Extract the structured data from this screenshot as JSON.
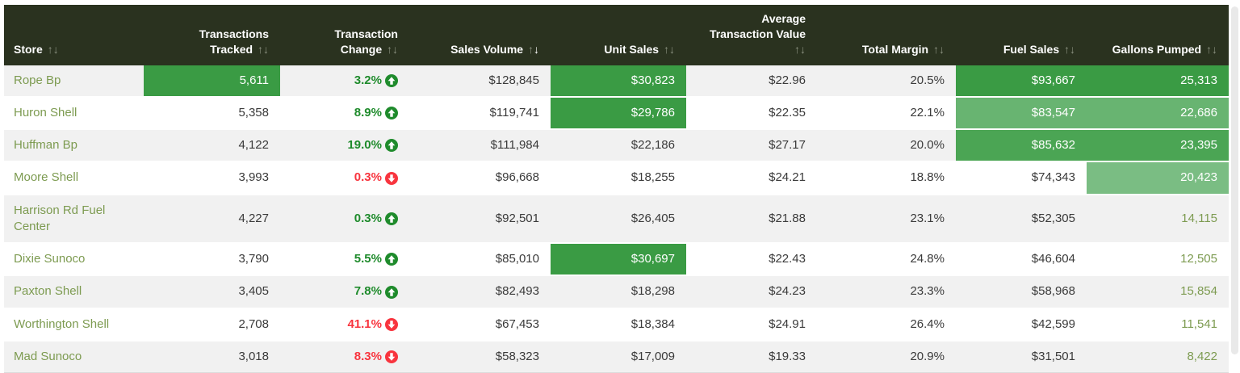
{
  "palette": {
    "header_bg": "#2a321f",
    "header_text": "#ffffff",
    "sort_inactive": "#8b9180",
    "sort_active": "#ffffff",
    "row_stripe": "#f1f1f1",
    "row_plain": "#ffffff",
    "store_text": "#7d9b51",
    "value_text": "#3a3a3a",
    "up_green": "#1f8b2c",
    "down_red": "#f8343e",
    "hl_strong": "#3a9b44",
    "hl_medium": "#4ba554",
    "hl_light": "#68b471",
    "hl_lighter": "#7abd83",
    "scrollbar": "#e9e9e9"
  },
  "table": {
    "columns": [
      {
        "key": "store",
        "label": "Store",
        "align": "left",
        "sort": "none"
      },
      {
        "key": "transactions",
        "label": "Transactions Tracked",
        "align": "right",
        "sort": "none"
      },
      {
        "key": "change",
        "label": "Transaction Change",
        "align": "right",
        "sort": "none"
      },
      {
        "key": "sales_volume",
        "label": "Sales Volume",
        "align": "right",
        "sort": "desc"
      },
      {
        "key": "unit_sales",
        "label": "Unit Sales",
        "align": "right",
        "sort": "none"
      },
      {
        "key": "avg_value",
        "label": "Average Transaction Value",
        "align": "right",
        "sort": "none"
      },
      {
        "key": "margin",
        "label": "Total Margin",
        "align": "right",
        "sort": "none"
      },
      {
        "key": "fuel_sales",
        "label": "Fuel Sales",
        "align": "right",
        "sort": "none"
      },
      {
        "key": "gallons",
        "label": "Gallons Pumped",
        "align": "right",
        "sort": "none"
      }
    ],
    "rows": [
      {
        "store": "Rope Bp",
        "cells": {
          "transactions": {
            "value": "5,611",
            "highlight": "strong"
          },
          "change": {
            "value": "3.2%",
            "direction": "up"
          },
          "sales_volume": {
            "value": "$128,845"
          },
          "unit_sales": {
            "value": "$30,823",
            "highlight": "strong"
          },
          "avg_value": {
            "value": "$22.96"
          },
          "margin": {
            "value": "20.5%"
          },
          "fuel_sales": {
            "value": "$93,667",
            "highlight": "strong"
          },
          "gallons": {
            "value": "25,313",
            "highlight": "strong"
          }
        }
      },
      {
        "store": "Huron Shell",
        "cells": {
          "transactions": {
            "value": "5,358"
          },
          "change": {
            "value": "8.9%",
            "direction": "up"
          },
          "sales_volume": {
            "value": "$119,741"
          },
          "unit_sales": {
            "value": "$29,786",
            "highlight": "strong"
          },
          "avg_value": {
            "value": "$22.35"
          },
          "margin": {
            "value": "22.1%"
          },
          "fuel_sales": {
            "value": "$83,547",
            "highlight": "light"
          },
          "gallons": {
            "value": "22,686",
            "highlight": "light"
          }
        }
      },
      {
        "store": "Huffman Bp",
        "cells": {
          "transactions": {
            "value": "4,122"
          },
          "change": {
            "value": "19.0%",
            "direction": "up"
          },
          "sales_volume": {
            "value": "$111,984"
          },
          "unit_sales": {
            "value": "$22,186"
          },
          "avg_value": {
            "value": "$27.17"
          },
          "margin": {
            "value": "20.0%"
          },
          "fuel_sales": {
            "value": "$85,632",
            "highlight": "medium"
          },
          "gallons": {
            "value": "23,395",
            "highlight": "medium"
          }
        }
      },
      {
        "store": "Moore Shell",
        "cells": {
          "transactions": {
            "value": "3,993"
          },
          "change": {
            "value": "0.3%",
            "direction": "down"
          },
          "sales_volume": {
            "value": "$96,668"
          },
          "unit_sales": {
            "value": "$18,255"
          },
          "avg_value": {
            "value": "$24.21"
          },
          "margin": {
            "value": "18.8%"
          },
          "fuel_sales": {
            "value": "$74,343"
          },
          "gallons": {
            "value": "20,423",
            "highlight": "lighter"
          }
        }
      },
      {
        "store": "Harrison Rd Fuel Center",
        "cells": {
          "transactions": {
            "value": "4,227"
          },
          "change": {
            "value": "0.3%",
            "direction": "up"
          },
          "sales_volume": {
            "value": "$92,501"
          },
          "unit_sales": {
            "value": "$26,405"
          },
          "avg_value": {
            "value": "$21.88"
          },
          "margin": {
            "value": "23.1%"
          },
          "fuel_sales": {
            "value": "$52,305"
          },
          "gallons": {
            "value": "14,115",
            "tone": "olive"
          }
        }
      },
      {
        "store": "Dixie Sunoco",
        "cells": {
          "transactions": {
            "value": "3,790"
          },
          "change": {
            "value": "5.5%",
            "direction": "up"
          },
          "sales_volume": {
            "value": "$85,010"
          },
          "unit_sales": {
            "value": "$30,697",
            "highlight": "strong"
          },
          "avg_value": {
            "value": "$22.43"
          },
          "margin": {
            "value": "24.8%"
          },
          "fuel_sales": {
            "value": "$46,604"
          },
          "gallons": {
            "value": "12,505",
            "tone": "olive"
          }
        }
      },
      {
        "store": "Paxton Shell",
        "cells": {
          "transactions": {
            "value": "3,405"
          },
          "change": {
            "value": "7.8%",
            "direction": "up"
          },
          "sales_volume": {
            "value": "$82,493"
          },
          "unit_sales": {
            "value": "$18,298"
          },
          "avg_value": {
            "value": "$24.23"
          },
          "margin": {
            "value": "23.3%"
          },
          "fuel_sales": {
            "value": "$58,968"
          },
          "gallons": {
            "value": "15,854",
            "tone": "olive"
          }
        }
      },
      {
        "store": "Worthington Shell",
        "cells": {
          "transactions": {
            "value": "2,708"
          },
          "change": {
            "value": "41.1%",
            "direction": "down"
          },
          "sales_volume": {
            "value": "$67,453"
          },
          "unit_sales": {
            "value": "$18,384"
          },
          "avg_value": {
            "value": "$24.91"
          },
          "margin": {
            "value": "26.4%"
          },
          "fuel_sales": {
            "value": "$42,599"
          },
          "gallons": {
            "value": "11,541",
            "tone": "olive"
          }
        }
      },
      {
        "store": "Mad Sunoco",
        "cells": {
          "transactions": {
            "value": "3,018"
          },
          "change": {
            "value": "8.3%",
            "direction": "down"
          },
          "sales_volume": {
            "value": "$58,323"
          },
          "unit_sales": {
            "value": "$17,009"
          },
          "avg_value": {
            "value": "$19.33"
          },
          "margin": {
            "value": "20.9%"
          },
          "fuel_sales": {
            "value": "$31,501"
          },
          "gallons": {
            "value": "8,422",
            "tone": "olive"
          }
        }
      }
    ]
  }
}
